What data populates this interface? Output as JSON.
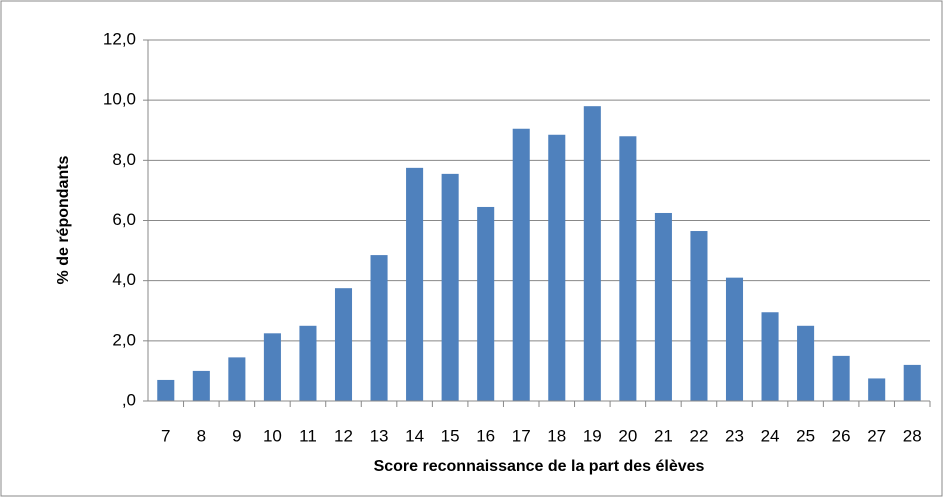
{
  "chart_data": {
    "type": "bar",
    "x_label": "Score reconnaissance de la part des élèves",
    "y_label": "% de répondants",
    "categories": [
      "7",
      "8",
      "9",
      "10",
      "11",
      "12",
      "13",
      "14",
      "15",
      "16",
      "17",
      "18",
      "19",
      "20",
      "21",
      "22",
      "23",
      "24",
      "25",
      "26",
      "27",
      "28"
    ],
    "values": [
      0.7,
      1.0,
      1.45,
      2.25,
      2.5,
      3.75,
      4.85,
      7.75,
      7.55,
      6.45,
      9.05,
      8.85,
      9.8,
      8.8,
      6.25,
      5.65,
      4.1,
      2.95,
      2.5,
      1.5,
      0.75,
      1.2
    ],
    "color": "#4f81bd",
    "ylim": [
      0,
      12
    ],
    "yticks": [
      {
        "value": 0,
        "label": ",0"
      },
      {
        "value": 2,
        "label": "2,0"
      },
      {
        "value": 4,
        "label": "4,0"
      },
      {
        "value": 6,
        "label": "6,0"
      },
      {
        "value": 8,
        "label": "8,0"
      },
      {
        "value": 10,
        "label": "10,0"
      },
      {
        "value": 12,
        "label": "12,0"
      }
    ],
    "grid": true
  }
}
